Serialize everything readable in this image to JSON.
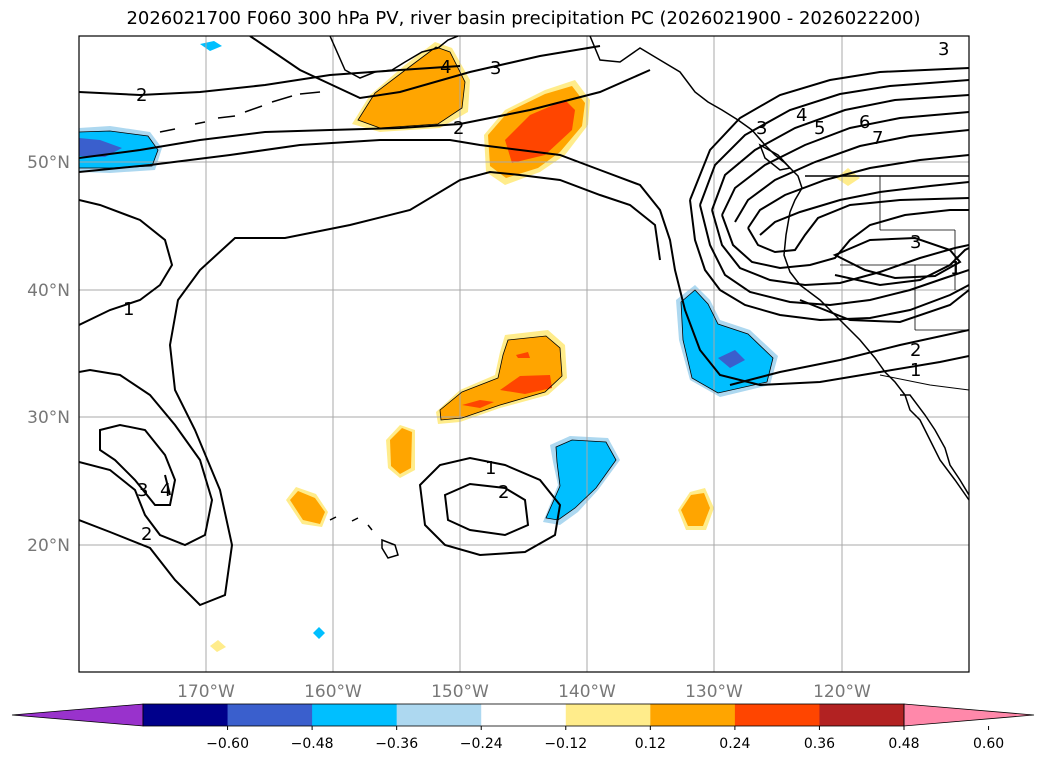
{
  "title": "2026021700 F060 300 hPa PV, river basin precipitation PC (2026021900 - 2026022200)",
  "lat_labels": [
    "50°N",
    "40°N",
    "30°N",
    "20°N"
  ],
  "lon_labels": [
    "170°W",
    "160°W",
    "150°W",
    "140°W",
    "130°W",
    "120°W"
  ],
  "colorbar": {
    "ticks": [
      "−0.60",
      "−0.48",
      "−0.36",
      "−0.24",
      "−0.12",
      "0.12",
      "0.24",
      "0.36",
      "0.48",
      "0.60"
    ],
    "colors": [
      "#9932cc",
      "#00008b",
      "#3a5fcd",
      "#00bfff",
      "#add8f0",
      "#ffffff",
      "#ffec8b",
      "#ffa500",
      "#ff4500",
      "#b22222",
      "#ff88aa"
    ]
  },
  "contour_labels": {
    "c2_nw": "2",
    "c3_n": "3",
    "c4_n": "4",
    "c2_n": "2",
    "c1_w": "1",
    "c3_sw": "3",
    "c4_sw": "4",
    "c2_sw": "2",
    "c1_c": "1",
    "c2_c": "2",
    "c3_ne": "3",
    "c4_ne": "4",
    "c5_ne": "5",
    "c6_ne": "6",
    "c7_ne": "7",
    "c3_e": "3",
    "c3_corner": "3",
    "c2_e": "2",
    "c1_e": "1",
    "c1_e2": "1"
  }
}
